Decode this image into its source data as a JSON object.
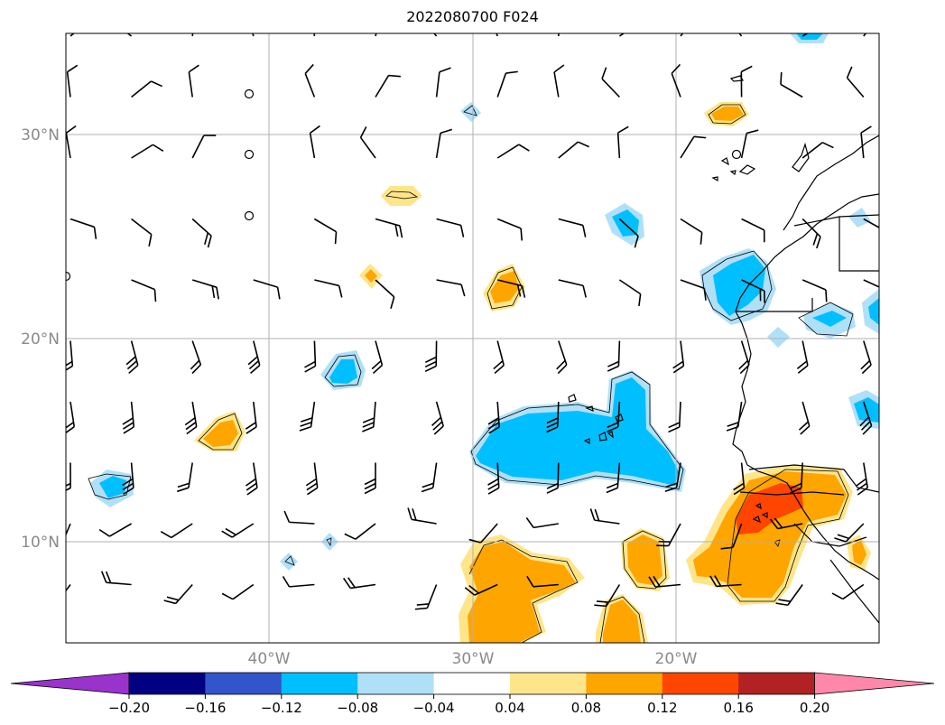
{
  "title": "2022080700 F024",
  "lat_labels": [
    "30°N",
    "20°N",
    "10°N"
  ],
  "lon_labels": [
    "40°W",
    "30°W",
    "20°W"
  ],
  "colorbar": {
    "ticks": [
      "−0.20",
      "−0.16",
      "−0.12",
      "−0.08",
      "−0.04",
      "0.04",
      "0.08",
      "0.12",
      "0.16",
      "0.20"
    ],
    "colors": [
      "#9933cc",
      "#000080",
      "#3355cc",
      "#00bfff",
      "#b0e0f8",
      "#ffffff",
      "#ffe58a",
      "#ffa500",
      "#ff4500",
      "#b22222",
      "#ff88aa"
    ]
  },
  "map": {
    "projection": "lat-lon",
    "lon_range": [
      "50°W",
      "10°W"
    ],
    "lat_range": [
      "5°N",
      "35°N"
    ],
    "gridlines": true,
    "features": [
      "filled contours",
      "wind barbs",
      "coastlines"
    ]
  }
}
